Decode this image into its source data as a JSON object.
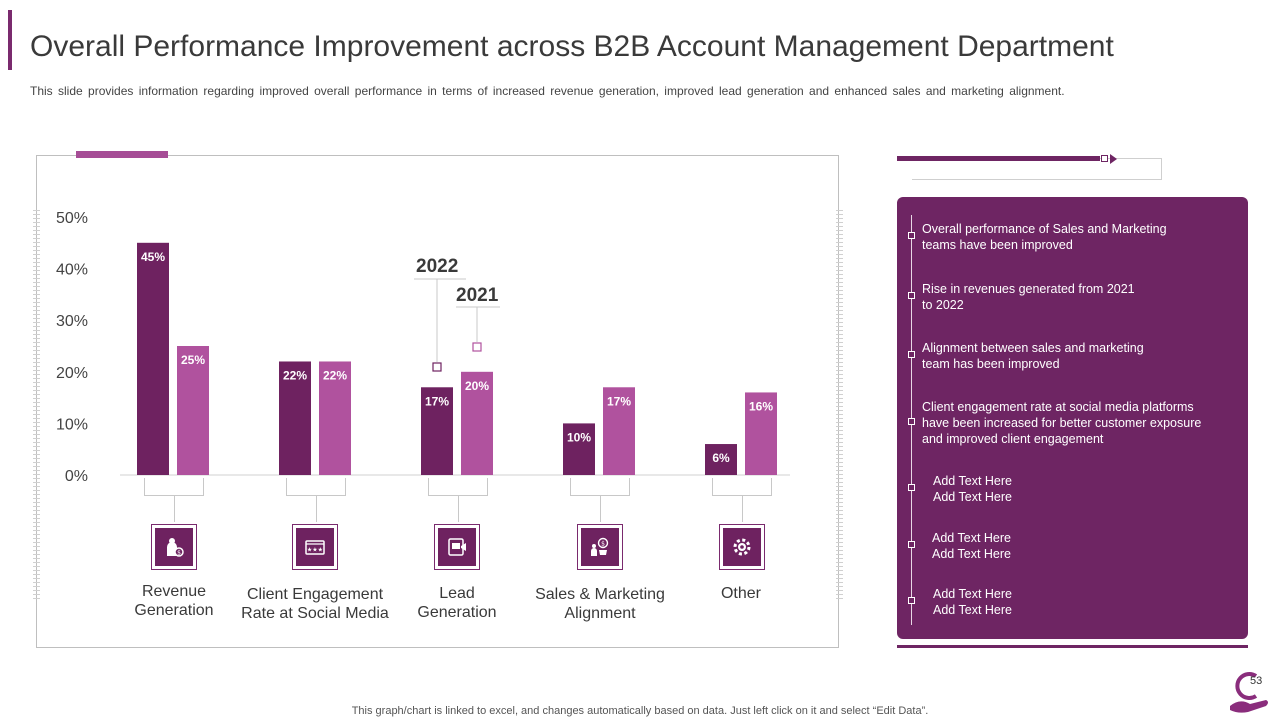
{
  "slide": {
    "title": "Overall Performance Improvement across B2B Account Management Department",
    "subtitle": "This slide provides information regarding improved overall performance in terms of increased revenue generation, improved lead generation and enhanced sales and marketing alignment.",
    "footer": "This graph/chart is linked to excel, and changes automatically based on data. Just left click on it and select “Edit Data”.",
    "page_number": "53"
  },
  "colors": {
    "series_2022": "#6e2260",
    "series_2021": "#b0529e",
    "panel": "#6e2563"
  },
  "chart_data": {
    "type": "bar",
    "title": "",
    "xlabel": "",
    "ylabel": "",
    "ylim": [
      0,
      50
    ],
    "yticks": [
      "0%",
      "10%",
      "20%",
      "30%",
      "40%",
      "50%"
    ],
    "categories": [
      "Revenue Generation",
      "Client Engagement Rate at Social Media",
      "Lead Generation",
      "Sales & Marketing Alignment",
      "Other"
    ],
    "series": [
      {
        "name": "2022",
        "values": [
          45,
          22,
          17,
          10,
          6
        ],
        "labels": [
          "45%",
          "22%",
          "17%",
          "10%",
          "6%"
        ]
      },
      {
        "name": "2021",
        "values": [
          25,
          22,
          20,
          17,
          16
        ],
        "labels": [
          "25%",
          "22%",
          "20%",
          "17%",
          "16%"
        ]
      }
    ],
    "legend": {
      "year_a": "2022",
      "year_b": "2021"
    }
  },
  "categories_display": [
    {
      "line1": "Revenue",
      "line2": "Generation",
      "icon": "revenue-icon"
    },
    {
      "line1": "Client Engagement",
      "line2": "Rate at Social Media",
      "icon": "engagement-icon"
    },
    {
      "line1": "Lead",
      "line2": "Generation",
      "icon": "lead-icon"
    },
    {
      "line1": "Sales & Marketing",
      "line2": "Alignment",
      "icon": "alignment-icon"
    },
    {
      "line1": "Other",
      "line2": "",
      "icon": "gear-icon"
    }
  ],
  "panel_items": [
    {
      "line1": "Overall  performance  of Sales and Marketing",
      "line2": "teams have  been improved",
      "line3": ""
    },
    {
      "line1": "Rise in revenues  generated  from 2021",
      "line2": "to 2022",
      "line3": ""
    },
    {
      "line1": "Alignment  between sales and marketing",
      "line2": "team has been improved",
      "line3": ""
    },
    {
      "line1": "Client engagement rate at social media platforms",
      "line2": "have  been increased for  better customer exposure",
      "line3": "and improved  client engagement"
    },
    {
      "line1": "Add Text Here",
      "line2": "Add Text Here",
      "line3": ""
    },
    {
      "line1": "Add Text Here",
      "line2": "Add Text Here",
      "line3": ""
    },
    {
      "line1": "Add Text Here",
      "line2": "Add Text Here",
      "line3": ""
    }
  ]
}
